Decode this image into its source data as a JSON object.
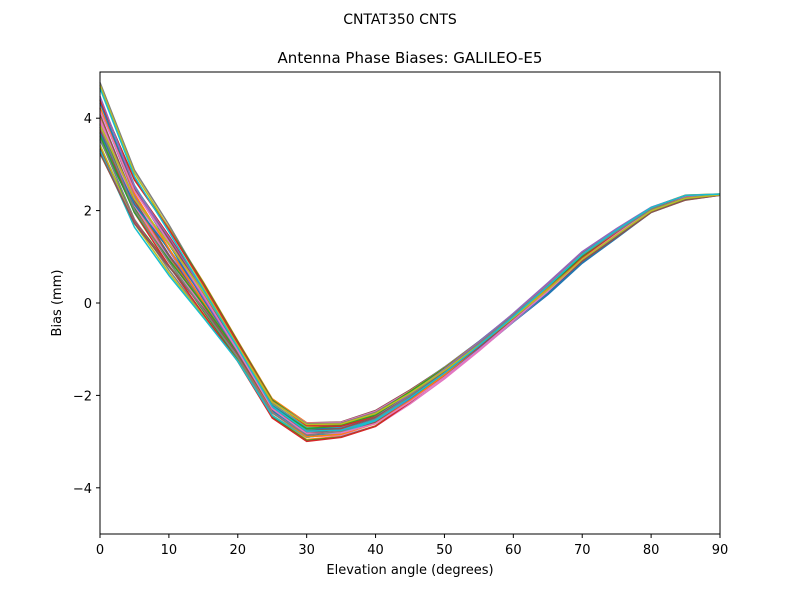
{
  "chart_data": {
    "type": "line",
    "suptitle": "CNTAT350        CNTS",
    "title": "Antenna Phase Biases: GALILEO-E5",
    "xlabel": "Elevation angle (degrees)",
    "ylabel": "Bias (mm)",
    "xlim": [
      0,
      90
    ],
    "ylim": [
      -5,
      5
    ],
    "xticks": [
      0,
      10,
      20,
      30,
      40,
      50,
      60,
      70,
      80,
      90
    ],
    "yticks": [
      -4,
      -2,
      0,
      2,
      4
    ],
    "ytick_labels": [
      "−4",
      "−2",
      "0",
      "2",
      "4"
    ],
    "x": [
      0,
      5,
      10,
      15,
      20,
      25,
      30,
      35,
      40,
      45,
      50,
      55,
      60,
      65,
      70,
      75,
      80,
      85,
      90
    ],
    "series_count": 40,
    "band_low": [
      3.1,
      1.55,
      0.55,
      -0.35,
      -1.3,
      -2.5,
      -3.0,
      -2.92,
      -2.7,
      -2.2,
      -1.65,
      -1.05,
      -0.42,
      0.18,
      0.86,
      1.4,
      1.95,
      2.22,
      2.33
    ],
    "band_high": [
      4.8,
      2.9,
      1.75,
      0.5,
      -0.8,
      -2.05,
      -2.55,
      -2.55,
      -2.3,
      -1.85,
      -1.35,
      -0.8,
      -0.2,
      0.45,
      1.12,
      1.62,
      2.08,
      2.34,
      2.36
    ],
    "palette": [
      "#1f77b4",
      "#ff7f0e",
      "#2ca02c",
      "#d62728",
      "#9467bd",
      "#8c564b",
      "#e377c2",
      "#7f7f7f",
      "#bcbd22",
      "#17becf"
    ]
  }
}
